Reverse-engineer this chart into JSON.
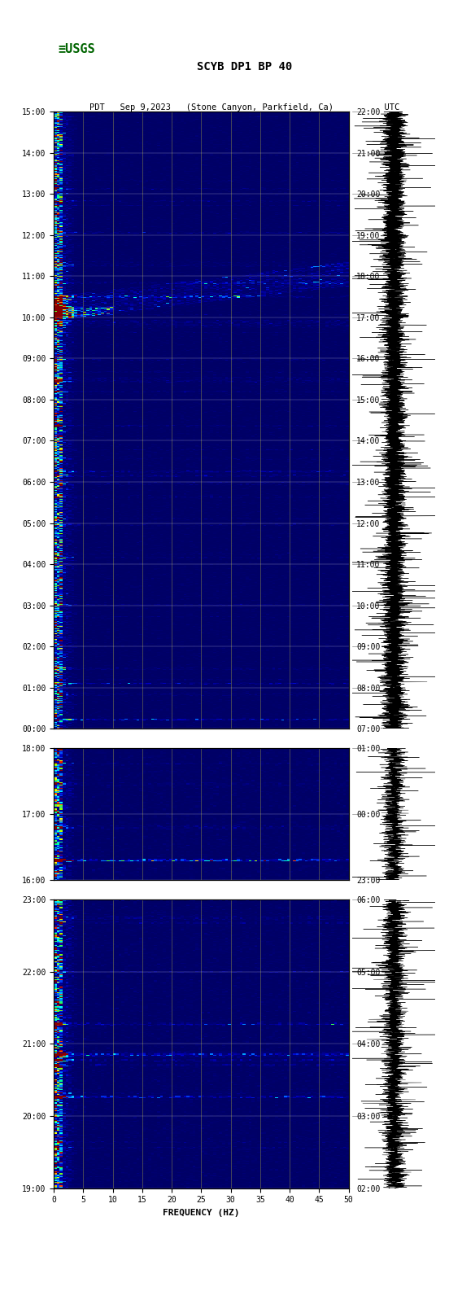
{
  "title_line1": "SCYB DP1 BP 40",
  "title_line2": "PDT   Sep 9,2023   (Stone Canyon, Parkfield, Ca)          UTC",
  "xlabel": "FREQUENCY (HZ)",
  "freq_ticks": [
    0,
    5,
    10,
    15,
    20,
    25,
    30,
    35,
    40,
    45,
    50
  ],
  "background_color": "#ffffff",
  "spectrogram_bg": "#00008B",
  "segment1_pdt_start": "00:00",
  "segment1_pdt_end": "15:00",
  "segment1_utc_start": "07:00",
  "segment1_utc_end": "22:00",
  "segment2_pdt_start": "16:00",
  "segment2_pdt_end": "18:00",
  "segment2_utc_start": "23:00",
  "segment2_utc_end": "01:00",
  "segment3_pdt_start": "19:00",
  "segment3_pdt_end": "23:00",
  "segment3_utc_start": "02:00",
  "segment3_utc_end": "06:00",
  "colormap_colors": [
    "#000080",
    "#0000ff",
    "#0080ff",
    "#00ffff",
    "#00ff80",
    "#80ff00",
    "#ffff00",
    "#ff8000",
    "#ff0000",
    "#800000"
  ],
  "grid_color": "#8B8B4B",
  "waveform_color": "#000000",
  "logo_color": "#006400"
}
